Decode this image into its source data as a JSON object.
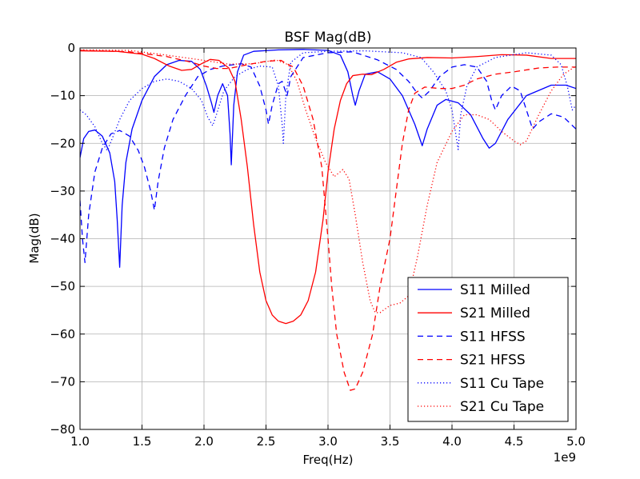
{
  "chart_data": {
    "type": "line",
    "title": "BSF Mag(dB)",
    "xlabel": "Freq(Hz)",
    "ylabel": "Mag(dB)",
    "x_offset_label": "1e9",
    "xlim": [
      1.0,
      5.0
    ],
    "ylim": [
      -80,
      0
    ],
    "xticks": [
      1.0,
      1.5,
      2.0,
      2.5,
      3.0,
      3.5,
      4.0,
      4.5,
      5.0
    ],
    "xtick_labels": [
      "1.0",
      "1.5",
      "2.0",
      "2.5",
      "3.0",
      "3.5",
      "4.0",
      "4.5",
      "5.0"
    ],
    "yticks": [
      0,
      -10,
      -20,
      -30,
      -40,
      -50,
      -60,
      -70,
      -80
    ],
    "ytick_labels": [
      "0",
      "−10",
      "−20",
      "−30",
      "−40",
      "−50",
      "−60",
      "−70",
      "−80"
    ],
    "grid": true,
    "legend_position": "lower-right",
    "series": [
      {
        "name": "S11 Milled",
        "color": "#0000ff",
        "style": "solid",
        "points": [
          [
            1.0,
            -23
          ],
          [
            1.03,
            -19
          ],
          [
            1.07,
            -17.5
          ],
          [
            1.12,
            -17.2
          ],
          [
            1.18,
            -18.5
          ],
          [
            1.24,
            -22
          ],
          [
            1.28,
            -28
          ],
          [
            1.3,
            -36
          ],
          [
            1.32,
            -46
          ],
          [
            1.34,
            -33
          ],
          [
            1.37,
            -24
          ],
          [
            1.42,
            -17
          ],
          [
            1.5,
            -11
          ],
          [
            1.6,
            -6
          ],
          [
            1.7,
            -3.5
          ],
          [
            1.8,
            -2.6
          ],
          [
            1.9,
            -2.8
          ],
          [
            1.97,
            -4.5
          ],
          [
            2.02,
            -8
          ],
          [
            2.06,
            -11.5
          ],
          [
            2.08,
            -13.5
          ],
          [
            2.11,
            -10
          ],
          [
            2.15,
            -7.5
          ],
          [
            2.19,
            -10
          ],
          [
            2.21,
            -18
          ],
          [
            2.22,
            -24.5
          ],
          [
            2.24,
            -12
          ],
          [
            2.27,
            -5
          ],
          [
            2.32,
            -1.5
          ],
          [
            2.4,
            -0.7
          ],
          [
            2.6,
            -0.4
          ],
          [
            2.8,
            -0.3
          ],
          [
            3.0,
            -0.5
          ],
          [
            3.1,
            -1.5
          ],
          [
            3.16,
            -5
          ],
          [
            3.2,
            -10
          ],
          [
            3.22,
            -12
          ],
          [
            3.25,
            -9
          ],
          [
            3.3,
            -5.5
          ],
          [
            3.4,
            -5
          ],
          [
            3.5,
            -6.5
          ],
          [
            3.6,
            -10
          ],
          [
            3.7,
            -16
          ],
          [
            3.76,
            -20.5
          ],
          [
            3.8,
            -17
          ],
          [
            3.88,
            -12
          ],
          [
            3.95,
            -10.8
          ],
          [
            4.05,
            -11.5
          ],
          [
            4.15,
            -14
          ],
          [
            4.25,
            -19
          ],
          [
            4.3,
            -21
          ],
          [
            4.35,
            -20
          ],
          [
            4.45,
            -15
          ],
          [
            4.6,
            -10
          ],
          [
            4.8,
            -7.8
          ],
          [
            4.92,
            -7.8
          ],
          [
            5.0,
            -8.5
          ]
        ]
      },
      {
        "name": "S21 Milled",
        "color": "#ff0000",
        "style": "solid",
        "points": [
          [
            1.0,
            -0.6
          ],
          [
            1.3,
            -0.7
          ],
          [
            1.5,
            -1.3
          ],
          [
            1.6,
            -2.2
          ],
          [
            1.72,
            -3.8
          ],
          [
            1.82,
            -4.7
          ],
          [
            1.9,
            -4.5
          ],
          [
            1.98,
            -3.3
          ],
          [
            2.05,
            -2.4
          ],
          [
            2.12,
            -2.6
          ],
          [
            2.2,
            -4.2
          ],
          [
            2.25,
            -7
          ],
          [
            2.3,
            -15
          ],
          [
            2.35,
            -25
          ],
          [
            2.4,
            -37
          ],
          [
            2.45,
            -47
          ],
          [
            2.5,
            -53
          ],
          [
            2.55,
            -56
          ],
          [
            2.6,
            -57.3
          ],
          [
            2.66,
            -57.8
          ],
          [
            2.72,
            -57.3
          ],
          [
            2.78,
            -56
          ],
          [
            2.84,
            -53
          ],
          [
            2.9,
            -47
          ],
          [
            2.96,
            -36
          ],
          [
            3.0,
            -26
          ],
          [
            3.05,
            -17
          ],
          [
            3.1,
            -11
          ],
          [
            3.15,
            -7.5
          ],
          [
            3.2,
            -5.8
          ],
          [
            3.28,
            -5.5
          ],
          [
            3.35,
            -5.6
          ],
          [
            3.45,
            -4.5
          ],
          [
            3.55,
            -3
          ],
          [
            3.65,
            -2.3
          ],
          [
            3.8,
            -2.0
          ],
          [
            4.0,
            -2.1
          ],
          [
            4.2,
            -1.8
          ],
          [
            4.4,
            -1.4
          ],
          [
            4.6,
            -1.5
          ],
          [
            4.8,
            -2.2
          ],
          [
            5.0,
            -2.2
          ]
        ]
      },
      {
        "name": "S11 HFSS",
        "color": "#0000ff",
        "style": "dashed",
        "points": [
          [
            1.0,
            -32
          ],
          [
            1.02,
            -40
          ],
          [
            1.04,
            -45
          ],
          [
            1.07,
            -35
          ],
          [
            1.12,
            -26
          ],
          [
            1.18,
            -21
          ],
          [
            1.25,
            -18
          ],
          [
            1.32,
            -17.3
          ],
          [
            1.4,
            -18.5
          ],
          [
            1.47,
            -21.5
          ],
          [
            1.52,
            -25
          ],
          [
            1.57,
            -30
          ],
          [
            1.6,
            -34
          ],
          [
            1.63,
            -28
          ],
          [
            1.68,
            -21
          ],
          [
            1.75,
            -15
          ],
          [
            1.85,
            -10
          ],
          [
            1.95,
            -6
          ],
          [
            2.05,
            -4.5
          ],
          [
            2.15,
            -3.8
          ],
          [
            2.3,
            -3.3
          ],
          [
            2.38,
            -4
          ],
          [
            2.45,
            -8
          ],
          [
            2.5,
            -13
          ],
          [
            2.52,
            -16
          ],
          [
            2.55,
            -12
          ],
          [
            2.6,
            -7.5
          ],
          [
            2.63,
            -7
          ],
          [
            2.67,
            -10
          ],
          [
            2.7,
            -6
          ],
          [
            2.8,
            -2
          ],
          [
            3.0,
            -1
          ],
          [
            3.2,
            -0.8
          ],
          [
            3.4,
            -2.5
          ],
          [
            3.55,
            -4.5
          ],
          [
            3.65,
            -7
          ],
          [
            3.72,
            -9.5
          ],
          [
            3.76,
            -10.5
          ],
          [
            3.82,
            -9
          ],
          [
            3.9,
            -6
          ],
          [
            4.0,
            -4
          ],
          [
            4.1,
            -3.5
          ],
          [
            4.2,
            -4
          ],
          [
            4.28,
            -7
          ],
          [
            4.32,
            -11
          ],
          [
            4.35,
            -13
          ],
          [
            4.4,
            -10
          ],
          [
            4.48,
            -8
          ],
          [
            4.55,
            -9
          ],
          [
            4.6,
            -13
          ],
          [
            4.65,
            -17
          ],
          [
            4.7,
            -15.5
          ],
          [
            4.8,
            -13.8
          ],
          [
            4.9,
            -14.5
          ],
          [
            5.0,
            -17
          ]
        ]
      },
      {
        "name": "S21 HFSS",
        "color": "#ff0000",
        "style": "dashed",
        "points": [
          [
            1.0,
            -0.5
          ],
          [
            1.4,
            -0.8
          ],
          [
            1.7,
            -1.8
          ],
          [
            1.9,
            -3
          ],
          [
            2.0,
            -3.8
          ],
          [
            2.1,
            -4.3
          ],
          [
            2.2,
            -4.3
          ],
          [
            2.35,
            -3.5
          ],
          [
            2.5,
            -2.8
          ],
          [
            2.62,
            -2.6
          ],
          [
            2.72,
            -4
          ],
          [
            2.8,
            -8
          ],
          [
            2.88,
            -15
          ],
          [
            2.95,
            -25
          ],
          [
            3.0,
            -40
          ],
          [
            3.03,
            -50
          ],
          [
            3.07,
            -60
          ],
          [
            3.13,
            -68
          ],
          [
            3.18,
            -71.8
          ],
          [
            3.22,
            -71.5
          ],
          [
            3.28,
            -68
          ],
          [
            3.36,
            -60
          ],
          [
            3.42,
            -50
          ],
          [
            3.5,
            -40
          ],
          [
            3.55,
            -30
          ],
          [
            3.6,
            -20
          ],
          [
            3.65,
            -13
          ],
          [
            3.7,
            -9.5
          ],
          [
            3.78,
            -8.2
          ],
          [
            3.9,
            -8.5
          ],
          [
            4.0,
            -8.5
          ],
          [
            4.1,
            -7.8
          ],
          [
            4.2,
            -6.5
          ],
          [
            4.35,
            -5.5
          ],
          [
            4.5,
            -5
          ],
          [
            4.7,
            -4.2
          ],
          [
            4.85,
            -4
          ],
          [
            5.0,
            -4
          ]
        ]
      },
      {
        "name": "S11 Cu Tape",
        "color": "#0000ff",
        "style": "dotted",
        "points": [
          [
            1.0,
            -13
          ],
          [
            1.05,
            -14
          ],
          [
            1.12,
            -16.5
          ],
          [
            1.18,
            -20
          ],
          [
            1.22,
            -21.5
          ],
          [
            1.26,
            -19
          ],
          [
            1.32,
            -15
          ],
          [
            1.4,
            -11
          ],
          [
            1.5,
            -8.5
          ],
          [
            1.6,
            -7
          ],
          [
            1.7,
            -6.5
          ],
          [
            1.8,
            -7
          ],
          [
            1.9,
            -8.5
          ],
          [
            1.98,
            -11
          ],
          [
            2.03,
            -14.5
          ],
          [
            2.07,
            -16.3
          ],
          [
            2.1,
            -14
          ],
          [
            2.16,
            -9
          ],
          [
            2.25,
            -6
          ],
          [
            2.35,
            -4.5
          ],
          [
            2.45,
            -3.8
          ],
          [
            2.55,
            -4
          ],
          [
            2.6,
            -8
          ],
          [
            2.63,
            -16
          ],
          [
            2.64,
            -20
          ],
          [
            2.66,
            -10
          ],
          [
            2.7,
            -3
          ],
          [
            2.8,
            -1
          ],
          [
            3.0,
            -0.7
          ],
          [
            3.3,
            -0.6
          ],
          [
            3.6,
            -1
          ],
          [
            3.75,
            -2
          ],
          [
            3.85,
            -5
          ],
          [
            3.95,
            -9
          ],
          [
            4.0,
            -13
          ],
          [
            4.03,
            -18
          ],
          [
            4.05,
            -21.3
          ],
          [
            4.07,
            -14
          ],
          [
            4.12,
            -8
          ],
          [
            4.2,
            -4
          ],
          [
            4.35,
            -2
          ],
          [
            4.6,
            -1
          ],
          [
            4.8,
            -1.5
          ],
          [
            4.88,
            -3.5
          ],
          [
            4.93,
            -8
          ],
          [
            4.97,
            -13
          ],
          [
            5.0,
            -12
          ]
        ]
      },
      {
        "name": "S21 Cu Tape",
        "color": "#ff0000",
        "style": "dotted",
        "points": [
          [
            1.0,
            -0.4
          ],
          [
            1.4,
            -0.5
          ],
          [
            1.7,
            -1.5
          ],
          [
            2.0,
            -2.6
          ],
          [
            2.2,
            -3.4
          ],
          [
            2.4,
            -3.3
          ],
          [
            2.58,
            -2.5
          ],
          [
            2.68,
            -3.5
          ],
          [
            2.75,
            -7
          ],
          [
            2.82,
            -13
          ],
          [
            2.9,
            -19
          ],
          [
            2.98,
            -24
          ],
          [
            3.05,
            -27
          ],
          [
            3.12,
            -25.5
          ],
          [
            3.17,
            -27.5
          ],
          [
            3.22,
            -35
          ],
          [
            3.28,
            -45
          ],
          [
            3.34,
            -53
          ],
          [
            3.38,
            -55.5
          ],
          [
            3.42,
            -55.5
          ],
          [
            3.5,
            -54
          ],
          [
            3.58,
            -53.5
          ],
          [
            3.65,
            -52
          ],
          [
            3.72,
            -44
          ],
          [
            3.8,
            -33
          ],
          [
            3.88,
            -24
          ],
          [
            4.0,
            -17.5
          ],
          [
            4.1,
            -14
          ],
          [
            4.2,
            -14
          ],
          [
            4.3,
            -15
          ],
          [
            4.4,
            -17.5
          ],
          [
            4.5,
            -19.5
          ],
          [
            4.55,
            -20.3
          ],
          [
            4.6,
            -19.5
          ],
          [
            4.7,
            -14
          ],
          [
            4.8,
            -9
          ],
          [
            4.9,
            -5.5
          ],
          [
            5.0,
            -3.8
          ]
        ]
      }
    ]
  }
}
